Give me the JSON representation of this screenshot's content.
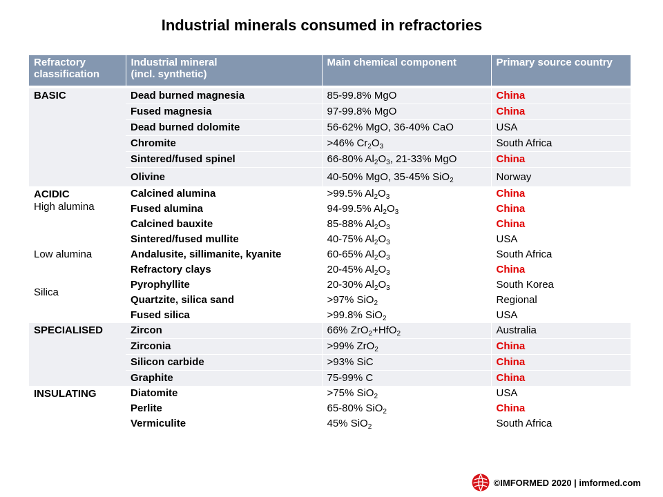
{
  "title": "Industrial minerals consumed in refractories",
  "headers": {
    "classification": [
      "Refractory",
      "classification"
    ],
    "mineral": [
      "Industrial mineral",
      "(incl. synthetic)"
    ],
    "component": "Main chemical component",
    "country": "Primary source country"
  },
  "groups": {
    "basic": "BASIC",
    "acidic": "ACIDIC",
    "high_alumina": "High alumina",
    "low_alumina": "Low alumina",
    "silica": "Silica",
    "specialised": "SPECIALISED",
    "insulating": "INSULATING"
  },
  "rows": [
    {
      "mineral": "Dead burned magnesia",
      "component": "85-99.8% MgO",
      "country": "China",
      "highlight": true
    },
    {
      "mineral": "Fused magnesia",
      "component": "97-99.8% MgO",
      "country": "China",
      "highlight": true
    },
    {
      "mineral": "Dead burned dolomite",
      "component": "56-62% MgO, 36-40% CaO",
      "country": "USA",
      "highlight": false
    },
    {
      "mineral": "Chromite",
      "component": ">46% Cr2O3",
      "country": "South Africa",
      "highlight": false
    },
    {
      "mineral": "Sintered/fused spinel",
      "component": "66-80% Al2O3, 21-33% MgO",
      "country": "China",
      "highlight": true
    },
    {
      "mineral": "Olivine",
      "component": "40-50% MgO, 35-45% SiO2",
      "country": "Norway",
      "highlight": false
    },
    {
      "mineral": "Calcined alumina",
      "component": ">99.5% Al2O3",
      "country": "China",
      "highlight": true
    },
    {
      "mineral": "Fused alumina",
      "component": "94-99.5% Al2O3",
      "country": "China",
      "highlight": true
    },
    {
      "mineral": "Calcined bauxite",
      "component": "85-88% Al2O3",
      "country": "China",
      "highlight": true
    },
    {
      "mineral": "Sintered/fused mullite",
      "component": "40-75% Al2O3",
      "country": "USA",
      "highlight": false
    },
    {
      "mineral": "Andalusite, sillimanite, kyanite",
      "component": "60-65% Al2O3",
      "country": "South Africa",
      "highlight": false
    },
    {
      "mineral": "Refractory clays",
      "component": "20-45% Al2O3",
      "country": "China",
      "highlight": true
    },
    {
      "mineral": "Pyrophyllite",
      "component": "20-30% Al2O3",
      "country": "South Korea",
      "highlight": false
    },
    {
      "mineral": "Quartzite, silica sand",
      "component": ">97% SiO2",
      "country": "Regional",
      "highlight": false
    },
    {
      "mineral": "Fused silica",
      "component": ">99.8% SiO2",
      "country": "USA",
      "highlight": false
    },
    {
      "mineral": "Zircon",
      "component": "66% ZrO2+HfO2",
      "country": "Australia",
      "highlight": false
    },
    {
      "mineral": "Zirconia",
      "component": ">99% ZrO2",
      "country": "China",
      "highlight": true
    },
    {
      "mineral": "Silicon carbide",
      "component": ">93% SiC",
      "country": "China",
      "highlight": true
    },
    {
      "mineral": "Graphite",
      "component": "75-99% C",
      "country": "China",
      "highlight": true
    },
    {
      "mineral": "Diatomite",
      "component": ">75% SiO2",
      "country": "USA",
      "highlight": false
    },
    {
      "mineral": "Perlite",
      "component": "65-80% SiO2",
      "country": "China",
      "highlight": true
    },
    {
      "mineral": "Vermiculite",
      "component": "45% SiO2",
      "country": "South Africa",
      "highlight": false
    }
  ],
  "footer": {
    "text": "©IMFORMED 2020  | imformed.com",
    "logo": "imformed-globe-logo",
    "logo_color": "#d7141a"
  },
  "colors": {
    "header_bg": "#8497b0",
    "row_shade": "#eeeff3",
    "china_red": "#e00000"
  }
}
